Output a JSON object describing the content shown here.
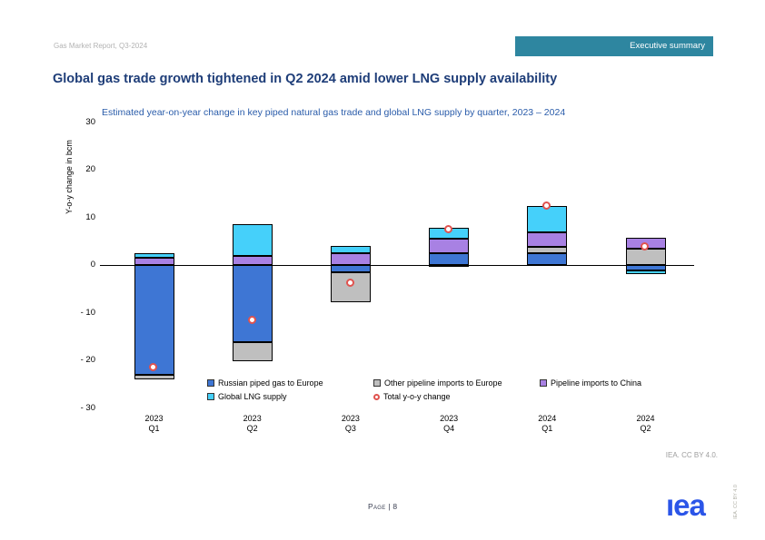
{
  "header": {
    "report_label": "Gas Market Report, Q3-2024",
    "badge_label": "Executive summary",
    "badge_color": "#2e86a0"
  },
  "title": "Global gas trade growth tightened in Q2 2024 amid lower LNG supply availability",
  "subtitle": "Estimated year-on-year change in key piped natural gas trade and global LNG supply by quarter, 2023 – 2024",
  "chart_data": {
    "type": "bar",
    "stacked": true,
    "ylabel": "Y-o-y change in bcm",
    "ylim": [
      -30,
      30
    ],
    "ytick_values": [
      30,
      20,
      10,
      0,
      -10,
      -20,
      -30
    ],
    "ytick_labels": [
      "30",
      "20",
      "10",
      "0",
      "- 10",
      "- 20",
      "- 30"
    ],
    "grid": false,
    "legend_position": "bottom-inside",
    "categories": [
      "2023 Q1",
      "2023 Q2",
      "2023 Q3",
      "2023 Q4",
      "2024 Q1",
      "2024 Q2"
    ],
    "category_labels": [
      [
        "2023",
        "Q1"
      ],
      [
        "2023",
        "Q2"
      ],
      [
        "2023",
        "Q3"
      ],
      [
        "2023",
        "Q4"
      ],
      [
        "2024",
        "Q1"
      ],
      [
        "2024",
        "Q2"
      ]
    ],
    "series_meta": {
      "russia": {
        "label": "Russian piped gas to Europe",
        "color": "#3e76d4"
      },
      "other": {
        "label": "Other pipeline imports to Europe",
        "color": "#bfbfbf"
      },
      "china": {
        "label": "Pipeline imports to China",
        "color": "#a881e3"
      },
      "lng": {
        "label": "Global LNG supply",
        "color": "#45d0fa"
      },
      "total": {
        "label": "Total y-o-y change",
        "color": "#e0534f",
        "marker": "circle"
      }
    },
    "legend_order": [
      "russia",
      "other",
      "china",
      "lng",
      "total"
    ],
    "bars": [
      {
        "category": "2023 Q1",
        "segments": [
          {
            "series": "china",
            "value": 1.6
          },
          {
            "series": "lng",
            "value": 0.8
          },
          {
            "series": "russia",
            "value": -23.0
          },
          {
            "series": "other",
            "value": -1.0
          }
        ],
        "total": -21.5
      },
      {
        "category": "2023 Q2",
        "segments": [
          {
            "series": "china",
            "value": 1.9
          },
          {
            "series": "lng",
            "value": 6.7
          },
          {
            "series": "russia",
            "value": -16.2
          },
          {
            "series": "other",
            "value": -4.0
          }
        ],
        "total": -11.7
      },
      {
        "category": "2023 Q3",
        "segments": [
          {
            "series": "china",
            "value": 2.5
          },
          {
            "series": "lng",
            "value": 1.5
          },
          {
            "series": "russia",
            "value": -1.5
          },
          {
            "series": "other",
            "value": -6.3
          }
        ],
        "total": -3.8
      },
      {
        "category": "2023 Q4",
        "segments": [
          {
            "series": "russia",
            "value": 2.5
          },
          {
            "series": "china",
            "value": 3.0
          },
          {
            "series": "lng",
            "value": 2.3
          },
          {
            "series": "other",
            "value": -0.3
          }
        ],
        "total": 7.5
      },
      {
        "category": "2024 Q1",
        "segments": [
          {
            "series": "russia",
            "value": 2.4
          },
          {
            "series": "other",
            "value": 1.4
          },
          {
            "series": "china",
            "value": 3.0
          },
          {
            "series": "lng",
            "value": 5.6
          }
        ],
        "total": 12.4
      },
      {
        "category": "2024 Q2",
        "segments": [
          {
            "series": "other",
            "value": 3.5
          },
          {
            "series": "china",
            "value": 2.3
          },
          {
            "series": "russia",
            "value": -1.2
          },
          {
            "series": "lng",
            "value": -0.7
          }
        ],
        "total": 3.8
      }
    ]
  },
  "footer": {
    "attribution": "IEA. CC BY 4.0.",
    "page_label": "Page | 8",
    "logo_text": "iea",
    "logo_display": "ıea",
    "logo_color": "#2b55e8",
    "side_note": "IEA. CC BY 4.0"
  }
}
